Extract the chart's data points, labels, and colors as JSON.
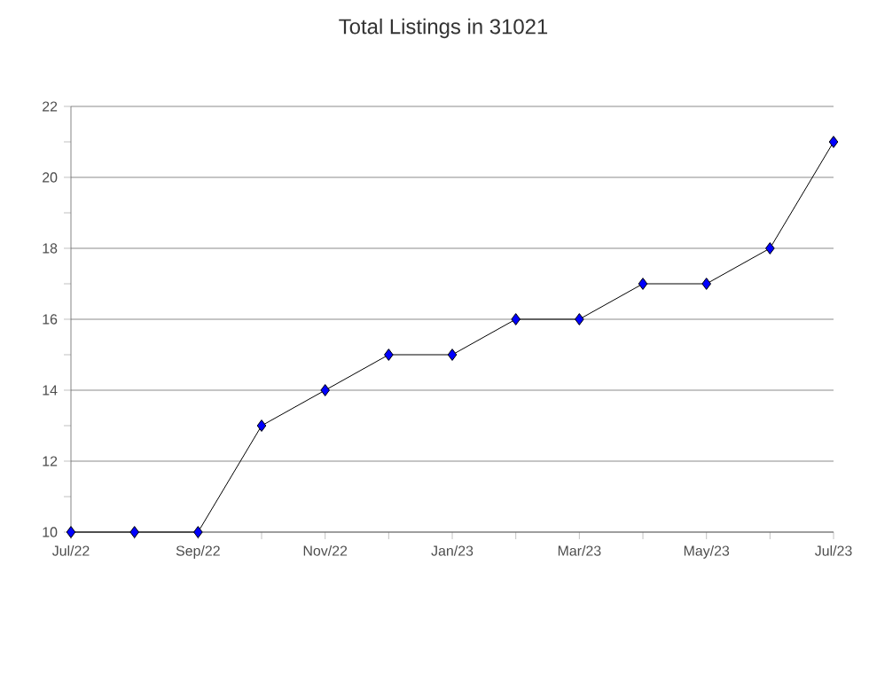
{
  "chart_data": {
    "type": "line",
    "title": "Total Listings in 31021",
    "categories": [
      "Jul/22",
      null,
      "Sep/22",
      null,
      "Nov/22",
      null,
      "Jan/23",
      null,
      "Mar/23",
      null,
      "May/23",
      null,
      "Jul/23"
    ],
    "values": [
      10,
      10,
      10,
      13,
      14,
      15,
      15,
      16,
      16,
      17,
      17,
      18,
      21
    ],
    "color": "#0000ff",
    "marker": "diamond",
    "grid": "y",
    "ylim": [
      10,
      22
    ],
    "yticks": [
      10,
      {
        "value": 11,
        "label": null
      },
      12,
      {
        "value": 13,
        "label": null
      },
      14,
      {
        "value": 15,
        "label": null
      },
      16,
      {
        "value": 17,
        "label": null
      },
      18,
      {
        "value": 19,
        "label": null
      },
      20,
      {
        "value": 21,
        "label": null
      },
      22
    ]
  }
}
